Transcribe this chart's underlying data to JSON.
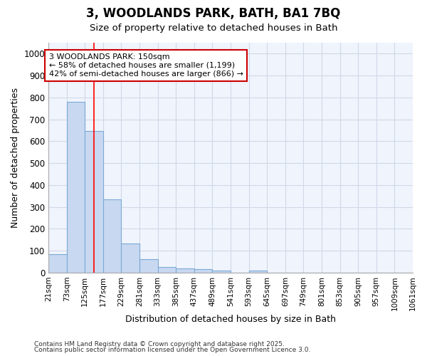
{
  "title_line1": "3, WOODLANDS PARK, BATH, BA1 7BQ",
  "title_line2": "Size of property relative to detached houses in Bath",
  "xlabel": "Distribution of detached houses by size in Bath",
  "ylabel": "Number of detached properties",
  "bins": [
    21,
    73,
    125,
    177,
    229,
    281,
    333,
    385,
    437,
    489,
    541,
    593,
    645,
    697,
    749,
    801,
    853,
    905,
    957,
    1009,
    1061
  ],
  "bin_labels": [
    "21sqm",
    "73sqm",
    "125sqm",
    "177sqm",
    "229sqm",
    "281sqm",
    "333sqm",
    "385sqm",
    "437sqm",
    "489sqm",
    "541sqm",
    "593sqm",
    "645sqm",
    "697sqm",
    "749sqm",
    "801sqm",
    "853sqm",
    "905sqm",
    "957sqm",
    "1009sqm",
    "1061sqm"
  ],
  "values": [
    83,
    780,
    648,
    335,
    133,
    62,
    26,
    18,
    15,
    8,
    0,
    8,
    0,
    0,
    0,
    0,
    0,
    0,
    0,
    0
  ],
  "bar_color": "#c8d8f0",
  "bar_edge_color": "#7aaad8",
  "grid_color": "#d0d8e8",
  "background_color": "#ffffff",
  "plot_bg_color": "#f0f4fc",
  "ylim": [
    0,
    1050
  ],
  "yticks": [
    0,
    100,
    200,
    300,
    400,
    500,
    600,
    700,
    800,
    900,
    1000
  ],
  "red_line_x": 150,
  "annotation_text_line1": "3 WOODLANDS PARK: 150sqm",
  "annotation_text_line2": "← 58% of detached houses are smaller (1,199)",
  "annotation_text_line3": "42% of semi-detached houses are larger (866) →",
  "annotation_box_color": "#cc0000",
  "footer_line1": "Contains HM Land Registry data © Crown copyright and database right 2025.",
  "footer_line2": "Contains public sector information licensed under the Open Government Licence 3.0.",
  "bin_width": 52
}
